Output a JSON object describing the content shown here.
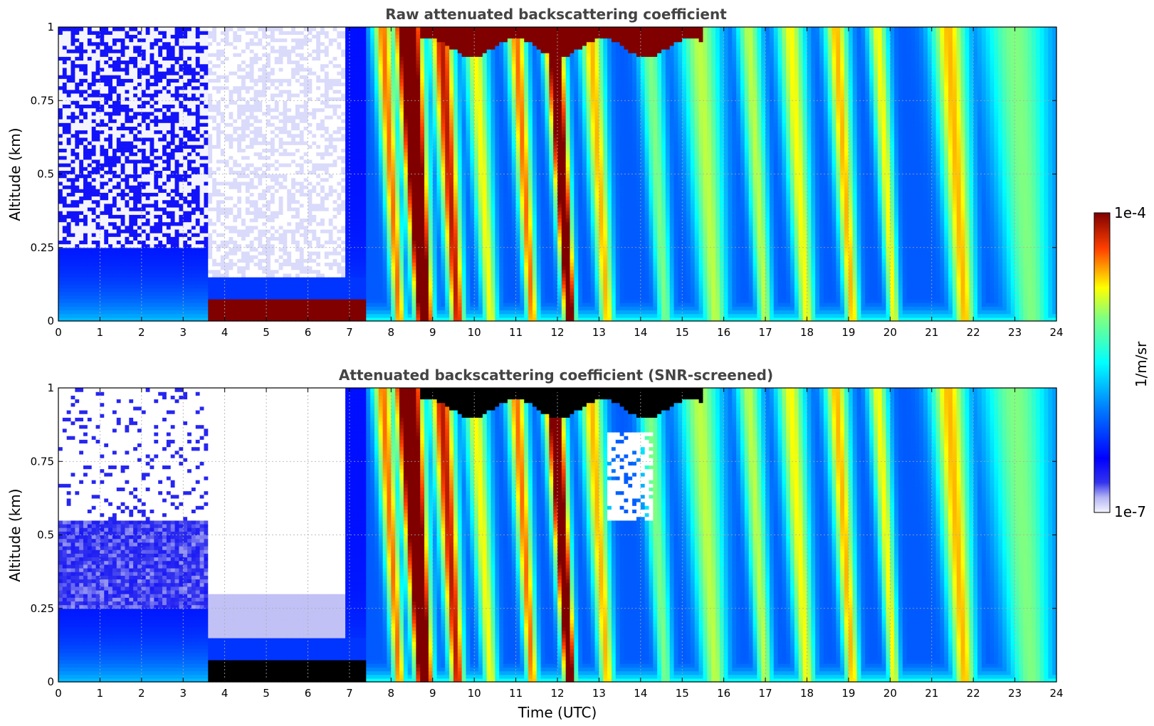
{
  "chart_data": [
    {
      "type": "heatmap",
      "title": "Raw attenuated backscattering coefficient",
      "xlabel": "",
      "ylabel": "Altitude (km)",
      "xlim": [
        0,
        24
      ],
      "ylim": [
        0,
        1
      ],
      "x_ticks": [
        "0",
        "1",
        "2",
        "3",
        "4",
        "5",
        "6",
        "7",
        "8",
        "9",
        "10",
        "11",
        "12",
        "13",
        "14",
        "15",
        "16",
        "17",
        "18",
        "19",
        "20",
        "21",
        "22",
        "23",
        "24"
      ],
      "y_ticks": [
        "0",
        "0.25",
        "0.5",
        "0.75",
        "1"
      ],
      "grid": true,
      "screened": false
    },
    {
      "type": "heatmap",
      "title": "Attenuated backscattering coefficient (SNR-screened)",
      "xlabel": "Time (UTC)",
      "ylabel": "Altitude (km)",
      "xlim": [
        0,
        24
      ],
      "ylim": [
        0,
        1
      ],
      "x_ticks": [
        "0",
        "1",
        "2",
        "3",
        "4",
        "5",
        "6",
        "7",
        "8",
        "9",
        "10",
        "11",
        "12",
        "13",
        "14",
        "15",
        "16",
        "17",
        "18",
        "19",
        "20",
        "21",
        "22",
        "23",
        "24"
      ],
      "y_ticks": [
        "0",
        "0.25",
        "0.5",
        "0.75",
        "1"
      ],
      "grid": true,
      "screened": true
    }
  ],
  "colorbar": {
    "label": "1/m/sr",
    "max_label": "1e-4",
    "min_label": "1e-7",
    "scale": "log",
    "colormap": "jet",
    "range": [
      1e-07,
      0.0001
    ]
  }
}
